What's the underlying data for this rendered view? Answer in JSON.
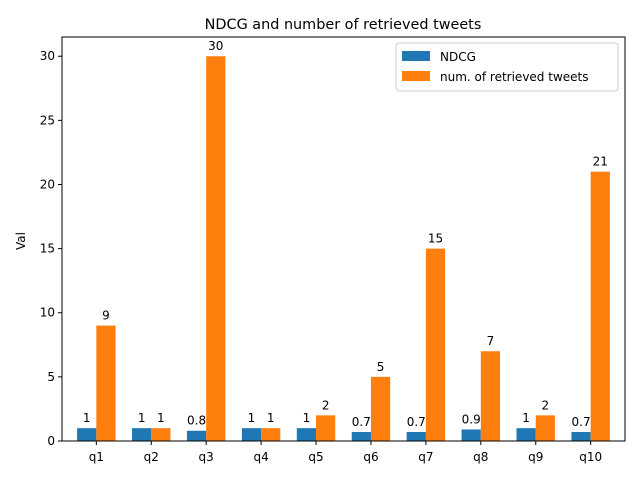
{
  "chart_data": {
    "type": "bar",
    "title": "NDCG and number of retrieved tweets",
    "xlabel": "",
    "ylabel": "Val",
    "ylim": [
      0,
      31.5
    ],
    "yticks": [
      0,
      5,
      10,
      15,
      20,
      25,
      30
    ],
    "categories": [
      "q1",
      "q2",
      "q3",
      "q4",
      "q5",
      "q6",
      "q7",
      "q8",
      "q9",
      "q10"
    ],
    "series": [
      {
        "name": "NDCG",
        "color": "#1f77b4",
        "values": [
          1,
          1,
          0.8,
          1,
          1,
          0.7,
          0.7,
          0.9,
          1,
          0.7
        ],
        "labels": [
          "1",
          "1",
          "0.8",
          "1",
          "1",
          "0.7",
          "0.7",
          "0.9",
          "1",
          "0.7"
        ]
      },
      {
        "name": "num. of retrieved tweets",
        "color": "#ff7f0e",
        "values": [
          9,
          1,
          30,
          1,
          2,
          5,
          15,
          7,
          2,
          21
        ],
        "labels": [
          "9",
          "1",
          "30",
          "1",
          "2",
          "5",
          "15",
          "7",
          "2",
          "21"
        ]
      }
    ],
    "legend": "top-right",
    "grid": false
  }
}
